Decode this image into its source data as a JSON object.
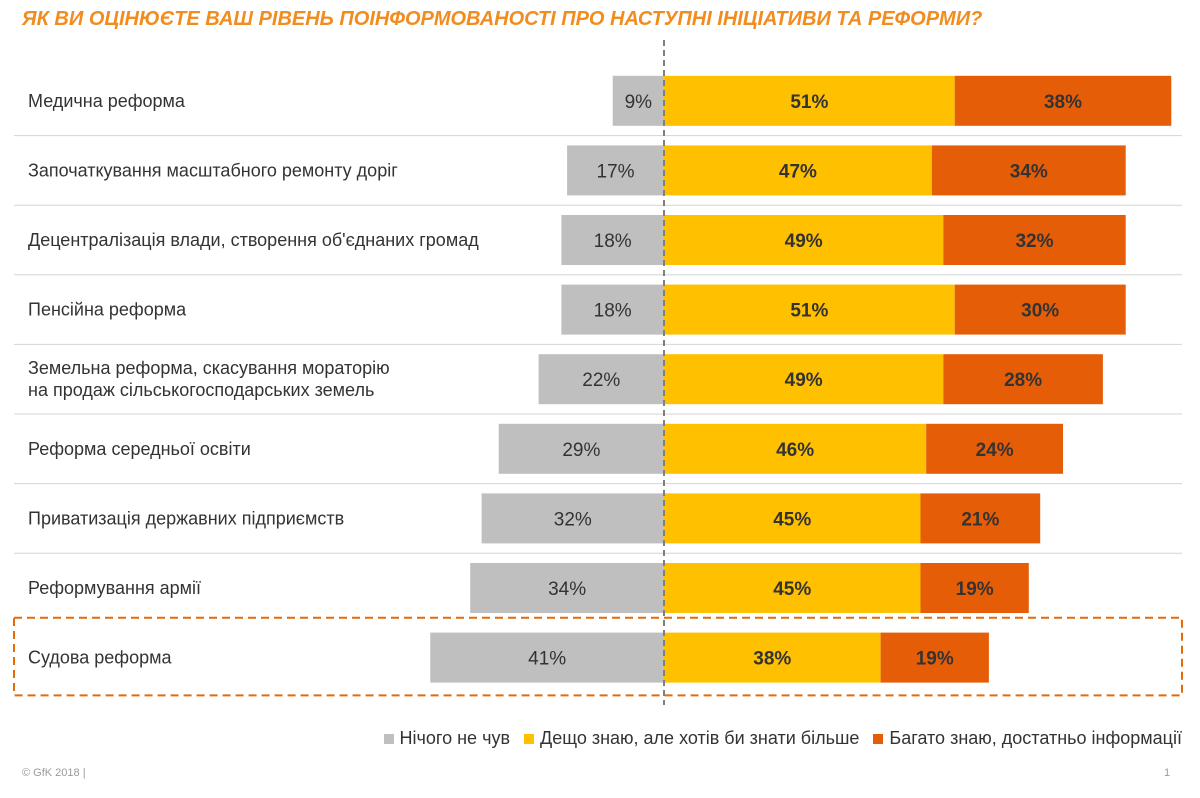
{
  "title": "ЯК ВИ ОЦІНЮЄТЕ ВАШ РІВЕНЬ ПОІНФОРМОВАНОСТІ ПРО НАСТУПНІ ІНІЦІАТИВИ ТА РЕФОРМИ?",
  "footer": {
    "copyright": "© GfK 2018 |",
    "page": "1"
  },
  "colors": {
    "none": "#BFBFBF",
    "some": "#FFC000",
    "much": "#E55D07",
    "title": "#F28C1E",
    "highlight_border": "#E26B0A"
  },
  "chart_data": {
    "type": "bar",
    "orientation": "horizontal-diverging",
    "categories": [
      "Медична реформа",
      "Започаткування масштабного ремонту доріг",
      "Децентралізація влади, створення об'єднаних громад",
      "Пенсійна реформа",
      "Земельна реформа, скасування мораторію на продаж сільськогосподарських земель",
      "Реформа середньої освіти",
      "Приватизація державних підприємств",
      "Реформування армії",
      "Судова реформа"
    ],
    "category_lines": [
      [
        "Медична реформа"
      ],
      [
        "Започаткування масштабного ремонту доріг"
      ],
      [
        "Децентралізація влади, створення об'єднаних громад"
      ],
      [
        "Пенсійна реформа"
      ],
      [
        "Земельна реформа, скасування мораторію",
        "на продаж сільськогосподарських земель"
      ],
      [
        "Реформа середньої освіти"
      ],
      [
        "Приватизація державних підприємств"
      ],
      [
        "Реформування армії"
      ],
      [
        "Судова реформа"
      ]
    ],
    "series": [
      {
        "name": "Нічого не чув",
        "values": [
          9,
          17,
          18,
          18,
          22,
          29,
          32,
          34,
          41
        ],
        "side": "left"
      },
      {
        "name": "Дещо знаю, але хотів би знати більше",
        "values": [
          51,
          47,
          49,
          51,
          49,
          46,
          45,
          45,
          38
        ],
        "side": "right"
      },
      {
        "name": "Багато знаю, достатньо інформації",
        "values": [
          38,
          34,
          32,
          30,
          28,
          24,
          21,
          19,
          19
        ],
        "side": "right"
      }
    ],
    "unit": "%",
    "highlighted_category": "Судова реформа",
    "legend_position": "bottom-right",
    "grid": false
  }
}
